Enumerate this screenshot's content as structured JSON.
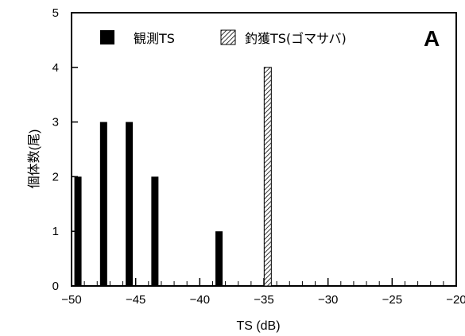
{
  "chart_data": {
    "type": "bar",
    "panel_label": "A",
    "xlabel": "TS (dB)",
    "ylabel": "個体数(尾)",
    "xlim": [
      -50,
      -20
    ],
    "ylim": [
      0,
      5
    ],
    "x_ticks": [
      -50,
      -45,
      -40,
      -35,
      -30,
      -25,
      -20
    ],
    "x_tick_labels": [
      "−50",
      "−45",
      "−40",
      "−35",
      "−30",
      "−25",
      "−20"
    ],
    "y_ticks": [
      0,
      1,
      2,
      3,
      4,
      5
    ],
    "y_tick_labels": [
      "0",
      "1",
      "2",
      "3",
      "4",
      "5"
    ],
    "grid": false,
    "legend_position": "top",
    "series": [
      {
        "name": "観測TS",
        "fill": "solid",
        "color": "#000000",
        "points": [
          {
            "x": -49.5,
            "y": 2
          },
          {
            "x": -47.5,
            "y": 3
          },
          {
            "x": -45.5,
            "y": 3
          },
          {
            "x": -43.5,
            "y": 2
          },
          {
            "x": -38.5,
            "y": 1
          }
        ]
      },
      {
        "name": "釣獲TS(ゴマサバ)",
        "fill": "hatched",
        "color": "#000000",
        "points": [
          {
            "x": -34.7,
            "y": 4
          }
        ]
      }
    ]
  }
}
